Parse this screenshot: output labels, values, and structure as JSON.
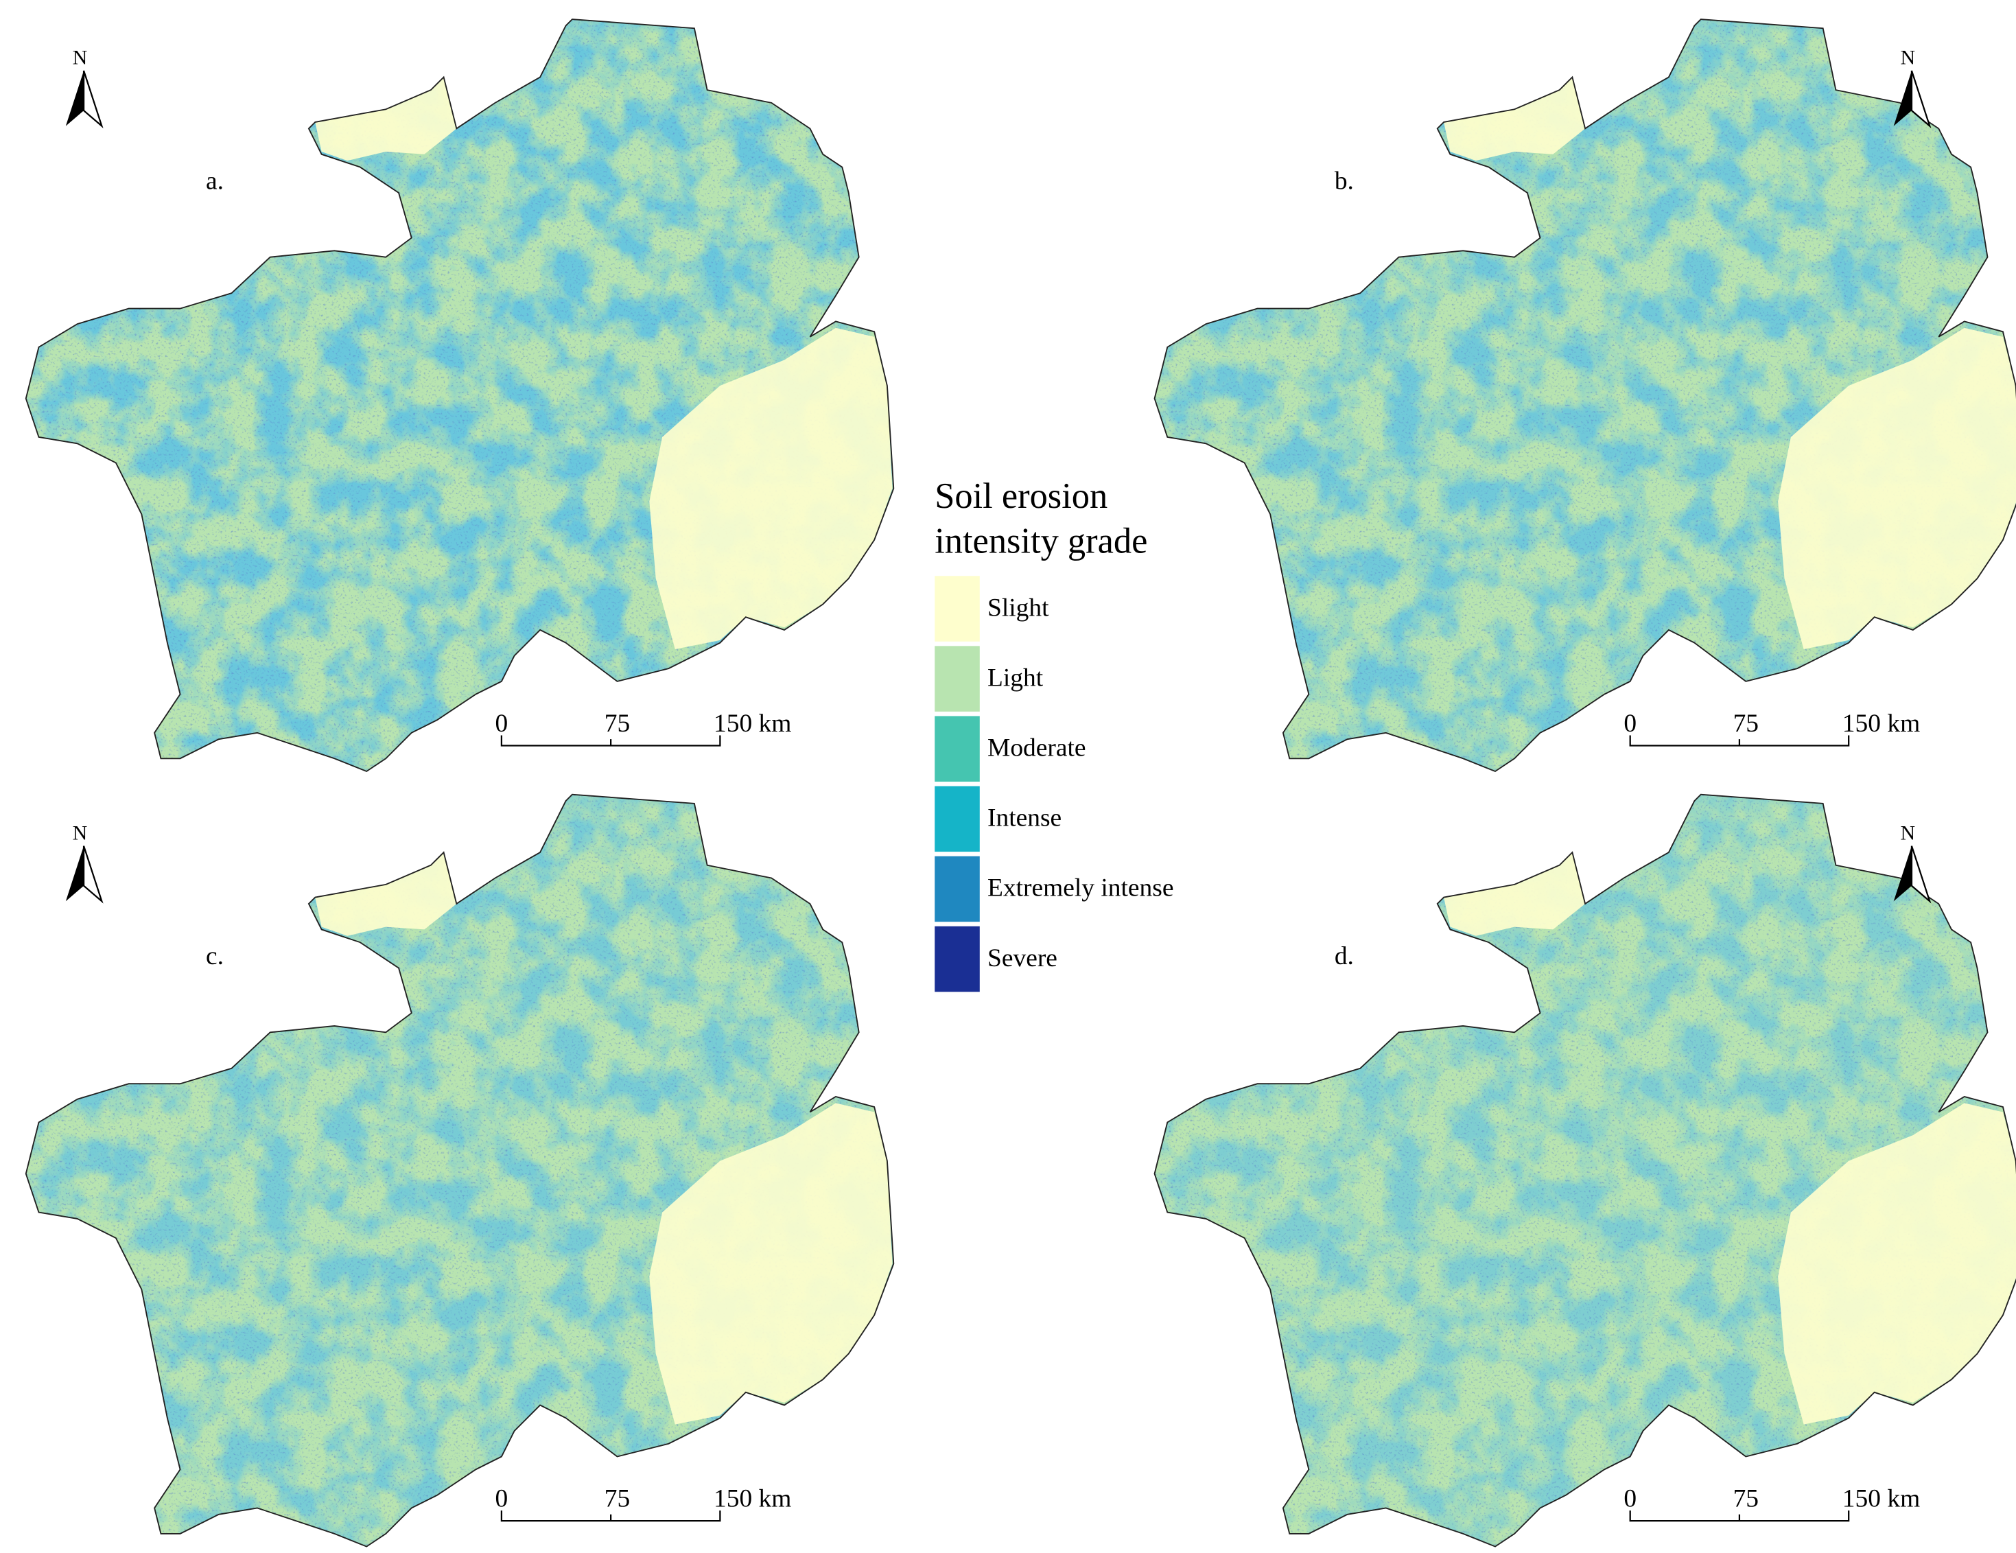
{
  "panels": [
    {
      "label": "a.",
      "north": "N",
      "scale_bar": [
        "0",
        "75",
        "150 km"
      ]
    },
    {
      "label": "b.",
      "north": "N",
      "scale_bar": [
        "0",
        "75",
        "150 km"
      ]
    },
    {
      "label": "c.",
      "north": "N",
      "scale_bar": [
        "0",
        "75",
        "150 km"
      ]
    },
    {
      "label": "d.",
      "north": "N",
      "scale_bar": [
        "0",
        "75",
        "150 km"
      ]
    }
  ],
  "legend": {
    "title_lines": [
      "Soil erosion",
      "intensity grade"
    ],
    "items": [
      {
        "label": "Slight",
        "color": "#fefecd"
      },
      {
        "label": "Light",
        "color": "#b8e4b0"
      },
      {
        "label": "Moderate",
        "color": "#45c5b0"
      },
      {
        "label": "Intense",
        "color": "#15b4c8"
      },
      {
        "label": "Extremely intense",
        "color": "#1f88c0"
      },
      {
        "label": "Severe",
        "color": "#1a2f94"
      }
    ]
  }
}
